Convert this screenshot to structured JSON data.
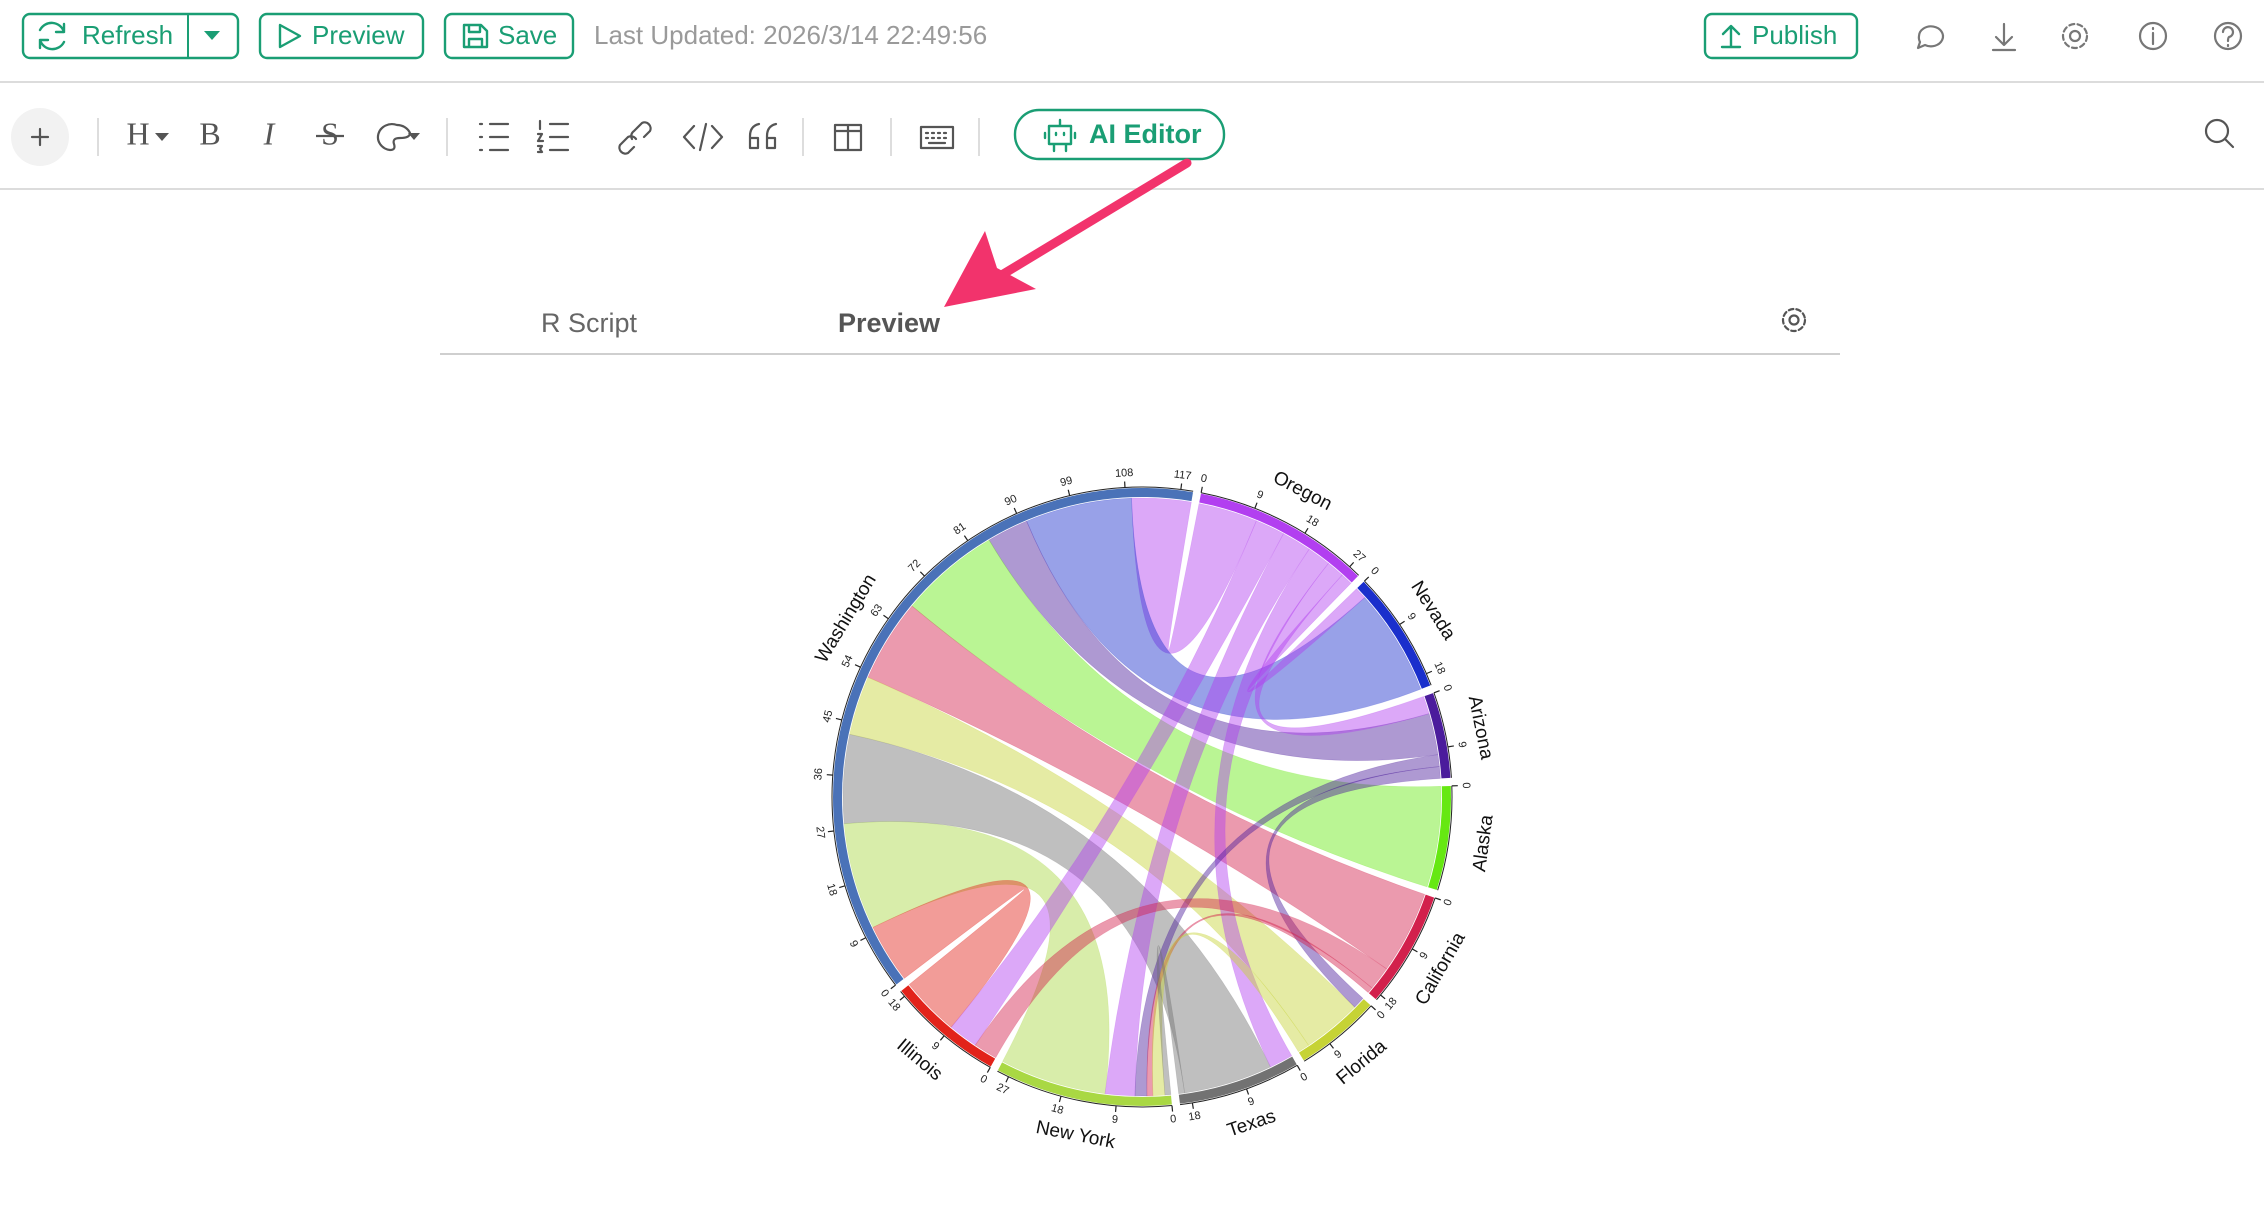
{
  "header": {
    "refresh": "Refresh",
    "preview": "Preview",
    "save": "Save",
    "last_updated": "Last Updated: 2026/3/14 22:49:56",
    "publish": "Publish"
  },
  "toolbar": {
    "format": [
      "H",
      "B",
      "I",
      "S"
    ],
    "ai_editor": "AI Editor"
  },
  "tabs": [
    "R Script",
    "Preview"
  ],
  "chart_data": {
    "type": "chord",
    "sectors": [
      {
        "name": "Oregon",
        "color": "#b23ff0",
        "total": 29,
        "ticks": [
          0,
          9,
          18,
          27
        ]
      },
      {
        "name": "Nevada",
        "color": "#1a2fcc",
        "total": 20,
        "ticks": [
          0,
          9,
          18
        ]
      },
      {
        "name": "Arizona",
        "color": "#4b1c9c",
        "total": 14,
        "ticks": [
          0,
          9
        ]
      },
      {
        "name": "Alaska",
        "color": "#66e812",
        "total": 17,
        "ticks": [
          0
        ]
      },
      {
        "name": "California",
        "color": "#d2204c",
        "total": 19,
        "ticks": [
          0,
          9,
          18
        ]
      },
      {
        "name": "Florida",
        "color": "#c6d335",
        "total": 14,
        "ticks": [
          0,
          9
        ]
      },
      {
        "name": "Texas",
        "color": "#727272",
        "total": 20,
        "ticks": [
          0,
          9,
          18
        ]
      },
      {
        "name": "New York",
        "color": "#a9d843",
        "total": 29,
        "ticks": [
          0,
          9,
          18,
          27
        ]
      },
      {
        "name": "Illinois",
        "color": "#e2231a",
        "total": 19,
        "ticks": [
          0,
          9,
          18
        ]
      },
      {
        "name": "Washington",
        "color": "#4a72b8",
        "total": 119,
        "ticks": [
          0,
          9,
          18,
          27,
          36,
          45,
          54,
          63,
          72,
          81,
          90,
          99,
          108,
          117
        ]
      }
    ],
    "flows": [
      {
        "from": "Oregon",
        "to": "Washington",
        "value": 10
      },
      {
        "from": "Nevada",
        "to": "Washington",
        "value": 18
      },
      {
        "from": "Arizona",
        "to": "Washington",
        "value": 7
      },
      {
        "from": "Alaska",
        "to": "Washington",
        "value": 17
      },
      {
        "from": "California",
        "to": "Washington",
        "value": 14
      },
      {
        "from": "Florida",
        "to": "Washington",
        "value": 10
      },
      {
        "from": "Texas",
        "to": "Washington",
        "value": 15
      },
      {
        "from": "New York",
        "to": "Washington",
        "value": 18
      },
      {
        "from": "Illinois",
        "to": "Washington",
        "value": 10
      },
      {
        "from": "Oregon",
        "to": "Nevada",
        "value": 2
      },
      {
        "from": "Oregon",
        "to": "New York",
        "value": 5
      },
      {
        "from": "Oregon",
        "to": "Texas",
        "value": 4
      },
      {
        "from": "Oregon",
        "to": "Arizona",
        "value": 3
      },
      {
        "from": "Oregon",
        "to": "Illinois",
        "value": 5
      },
      {
        "from": "Arizona",
        "to": "New York",
        "value": 2
      },
      {
        "from": "Arizona",
        "to": "Florida",
        "value": 2
      },
      {
        "from": "California",
        "to": "New York",
        "value": 1
      },
      {
        "from": "California",
        "to": "Illinois",
        "value": 4
      },
      {
        "from": "Florida",
        "to": "New York",
        "value": 2
      },
      {
        "from": "Texas",
        "to": "New York",
        "value": 1
      }
    ]
  }
}
